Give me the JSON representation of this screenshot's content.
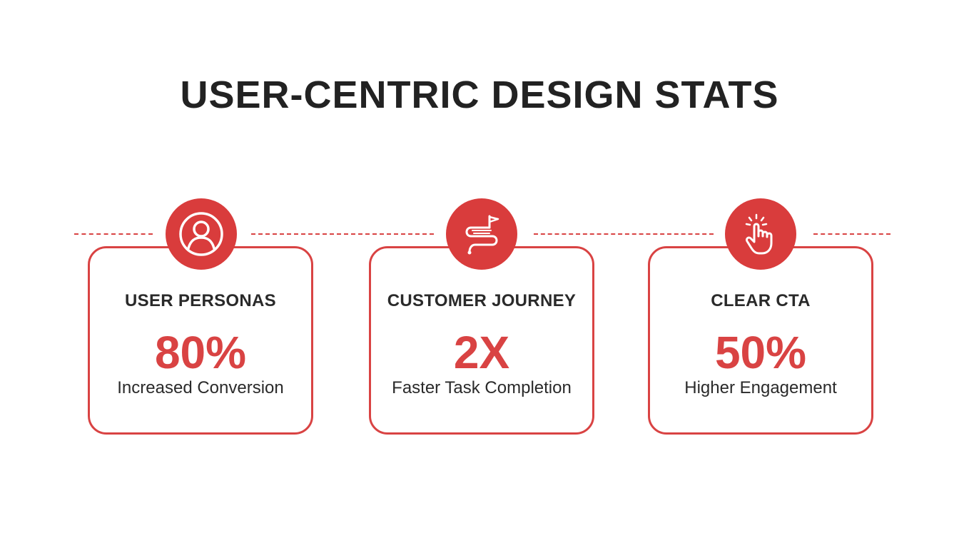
{
  "title": "USER-CENTRIC DESIGN STATS",
  "accent_color": "#d94343",
  "cards": [
    {
      "icon": "user-icon",
      "label": "USER PERSONAS",
      "value": "80%",
      "description": "Increased Conversion"
    },
    {
      "icon": "journey-flag-icon",
      "label": "CUSTOMER JOURNEY",
      "value": "2X",
      "description": "Faster Task Completion"
    },
    {
      "icon": "pointer-hand-icon",
      "label": "CLEAR CTA",
      "value": "50%",
      "description": "Higher Engagement"
    }
  ]
}
